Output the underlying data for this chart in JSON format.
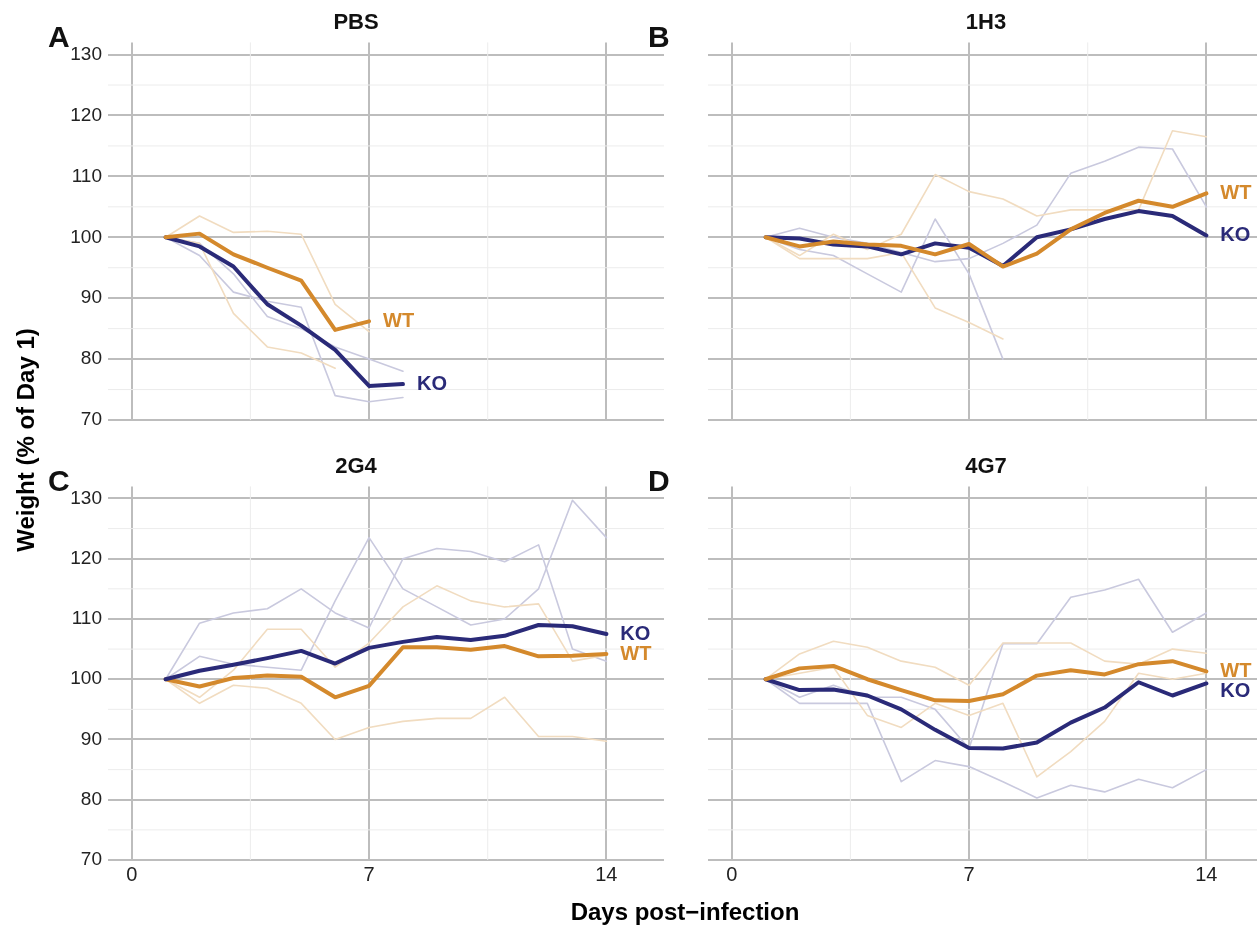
{
  "chart_data": [
    {
      "type": "line",
      "title": "PBS",
      "ylabel": "Weight (% of Day 1)",
      "annotations": [
        "A"
      ],
      "x": [
        1,
        2,
        3,
        4,
        5,
        6,
        7,
        8
      ],
      "xlim": [
        -0.7,
        15.7
      ],
      "xticks": [
        0,
        7,
        14
      ],
      "ylim": [
        70,
        132
      ],
      "yticks": [
        70,
        80,
        90,
        100,
        110,
        120,
        130
      ],
      "grid": true,
      "legend": false,
      "tick_labels": "y",
      "series": [
        {
          "color": "#f1dcc0",
          "values": [
            100,
            103.5,
            100.8,
            101,
            100.5,
            89,
            84.5,
            null
          ]
        },
        {
          "color": "#f1dcc0",
          "values": [
            100,
            99,
            87.5,
            82,
            81,
            78.5,
            null,
            null
          ]
        },
        {
          "color": "#c9c9de",
          "values": [
            100,
            97,
            91,
            89.5,
            88.5,
            74,
            73,
            73.7
          ]
        },
        {
          "color": "#c9c9de",
          "values": [
            100,
            99,
            94,
            87,
            85,
            82,
            80,
            78
          ]
        },
        {
          "name": "WT",
          "color": "#d4892c",
          "values": [
            100,
            100.6,
            97.2,
            95,
            92.9,
            84.8,
            86.2,
            null
          ]
        },
        {
          "name": "KO",
          "color": "#2a2a78",
          "values": [
            100,
            98.5,
            95.2,
            89,
            85.5,
            81.5,
            75.6,
            75.9
          ]
        }
      ]
    },
    {
      "type": "line",
      "title": "1H3",
      "annotations": [
        "B"
      ],
      "x": [
        1,
        2,
        3,
        4,
        5,
        6,
        7,
        8,
        9,
        10,
        11,
        12,
        13,
        14
      ],
      "xlim": [
        -0.7,
        15.7
      ],
      "xticks": [
        0,
        7,
        14
      ],
      "ylim": [
        70,
        132
      ],
      "yticks": [
        70,
        80,
        90,
        100,
        110,
        120,
        130
      ],
      "grid": true,
      "legend": false,
      "tick_labels": false,
      "series": [
        {
          "color": "#f1dcc0",
          "values": [
            100,
            97,
            100.5,
            98,
            100.5,
            110.3,
            107.5,
            106.3,
            103.5,
            104.5,
            104.5,
            104.5,
            117.5,
            116.5
          ]
        },
        {
          "color": "#f1dcc0",
          "values": [
            100,
            96.5,
            96.5,
            96.5,
            97.5,
            88.4,
            86,
            83.3,
            null,
            null,
            null,
            null,
            null,
            null
          ]
        },
        {
          "color": "#c9c9de",
          "values": [
            100,
            101.5,
            100,
            99,
            97.5,
            96,
            96.5,
            99,
            102,
            110.5,
            112.5,
            114.8,
            114.5,
            105
          ]
        },
        {
          "color": "#c9c9de",
          "values": [
            100,
            98,
            97,
            94,
            91,
            103,
            94,
            80,
            null,
            null,
            null,
            null,
            null,
            null
          ]
        },
        {
          "name": "WT",
          "color": "#d4892c",
          "values": [
            100,
            98.5,
            99.3,
            98.8,
            98.6,
            97.2,
            98.9,
            95.2,
            97.3,
            101.3,
            104,
            106,
            105,
            107.2
          ]
        },
        {
          "name": "KO",
          "color": "#2a2a78",
          "values": [
            100,
            99.8,
            98.8,
            98.5,
            97.2,
            99,
            98.3,
            95.3,
            100,
            101.3,
            103,
            104.3,
            103.5,
            100.3
          ]
        }
      ]
    },
    {
      "type": "line",
      "title": "2G4",
      "xlabel": "Days post−infection",
      "annotations": [
        "C"
      ],
      "x": [
        1,
        2,
        3,
        4,
        5,
        6,
        7,
        8,
        9,
        10,
        11,
        12,
        13,
        14
      ],
      "xlim": [
        -0.7,
        15.7
      ],
      "xticks": [
        0,
        7,
        14
      ],
      "ylim": [
        70,
        132
      ],
      "yticks": [
        70,
        80,
        90,
        100,
        110,
        120,
        130
      ],
      "grid": true,
      "legend": false,
      "series": [
        {
          "color": "#f1dcc0",
          "values": [
            100,
            97,
            101.5,
            108.3,
            108.3,
            102,
            106,
            112,
            115.5,
            113,
            112,
            112.5,
            103,
            104
          ]
        },
        {
          "color": "#f1dcc0",
          "values": [
            100,
            96,
            99,
            98.5,
            96,
            90,
            92,
            93,
            93.5,
            93.5,
            97,
            90.5,
            90.5,
            89.7
          ]
        },
        {
          "color": "#c9c9de",
          "values": [
            100,
            109.3,
            111,
            111.7,
            115,
            111,
            108.5,
            120,
            121.7,
            121.2,
            119.5,
            122.3,
            105,
            103
          ]
        },
        {
          "color": "#c9c9de",
          "values": [
            100,
            103.8,
            102.5,
            102,
            101.5,
            113,
            123.5,
            115,
            112,
            109,
            110,
            115,
            129.7,
            123.5
          ]
        },
        {
          "name": "KO",
          "color": "#2a2a78",
          "values": [
            100,
            101.4,
            102.4,
            103.5,
            104.7,
            102.6,
            105.2,
            106.2,
            107,
            106.5,
            107.2,
            109,
            108.8,
            107.5
          ]
        },
        {
          "name": "WT",
          "color": "#d4892c",
          "values": [
            100,
            98.8,
            100.2,
            100.6,
            100.4,
            97,
            98.9,
            105.3,
            105.3,
            104.9,
            105.5,
            103.8,
            103.9,
            104.2
          ]
        }
      ]
    },
    {
      "type": "line",
      "title": "4G7",
      "annotations": [
        "D"
      ],
      "x": [
        1,
        2,
        3,
        4,
        5,
        6,
        7,
        8,
        9,
        10,
        11,
        12,
        13,
        14
      ],
      "xlim": [
        -0.7,
        15.7
      ],
      "xticks": [
        0,
        7,
        14
      ],
      "ylim": [
        70,
        132
      ],
      "yticks": [
        70,
        80,
        90,
        100,
        110,
        120,
        130
      ],
      "grid": true,
      "legend": false,
      "tick_labels": "x",
      "series": [
        {
          "color": "#f1dcc0",
          "values": [
            100,
            104.2,
            106.3,
            105.3,
            103,
            102,
            99,
            106,
            106,
            106,
            103,
            102.5,
            105,
            104.3
          ]
        },
        {
          "color": "#f1dcc0",
          "values": [
            100,
            101,
            102,
            94,
            92,
            96,
            94,
            96,
            83.8,
            88,
            93,
            101,
            100,
            101
          ]
        },
        {
          "color": "#c9c9de",
          "values": [
            100,
            97,
            99,
            97,
            97,
            95,
            88.5,
            105.9,
            105.9,
            113.6,
            114.8,
            116.6,
            107.8,
            111
          ]
        },
        {
          "color": "#c9c9de",
          "values": [
            100,
            96,
            96,
            96,
            83,
            86.5,
            85.5,
            83,
            80.3,
            82.4,
            81.3,
            83.4,
            82,
            85
          ]
        },
        {
          "name": "WT",
          "color": "#d4892c",
          "values": [
            100,
            101.8,
            102.2,
            100,
            98.2,
            96.5,
            96.4,
            97.5,
            100.6,
            101.5,
            100.8,
            102.5,
            103,
            101.3
          ]
        },
        {
          "name": "KO",
          "color": "#2a2a78",
          "values": [
            100,
            98.2,
            98.3,
            97.3,
            95,
            91.6,
            88.6,
            88.5,
            89.5,
            92.8,
            95.3,
            99.5,
            97.3,
            99.3
          ]
        }
      ]
    }
  ]
}
